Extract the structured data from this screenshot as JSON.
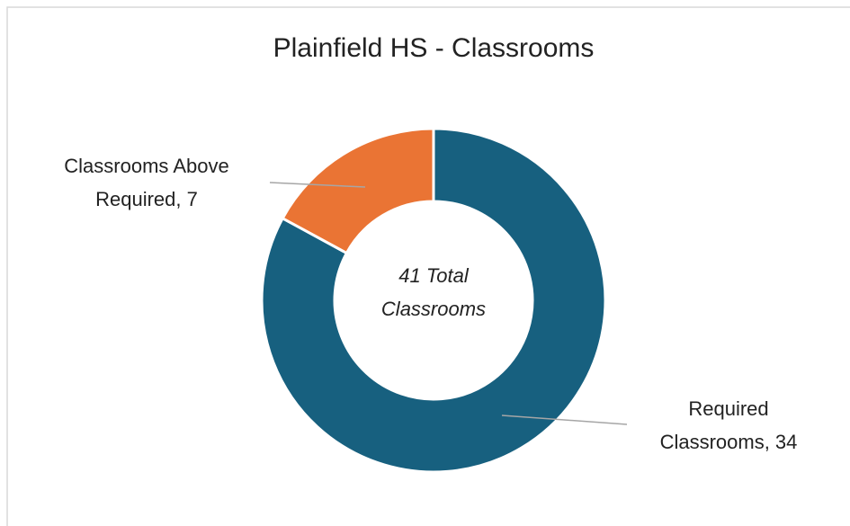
{
  "chart_data": {
    "type": "donut",
    "title": "Plainfield HS - Classrooms",
    "categories": [
      "Required Classrooms",
      "Classrooms Above Required"
    ],
    "values": [
      34,
      7
    ],
    "value_labels": [
      "Required Classrooms, 34",
      "Classrooms Above Required, 7"
    ],
    "colors": [
      "#17607f",
      "#ea7434"
    ],
    "annotation": "41 Total Classrooms"
  }
}
